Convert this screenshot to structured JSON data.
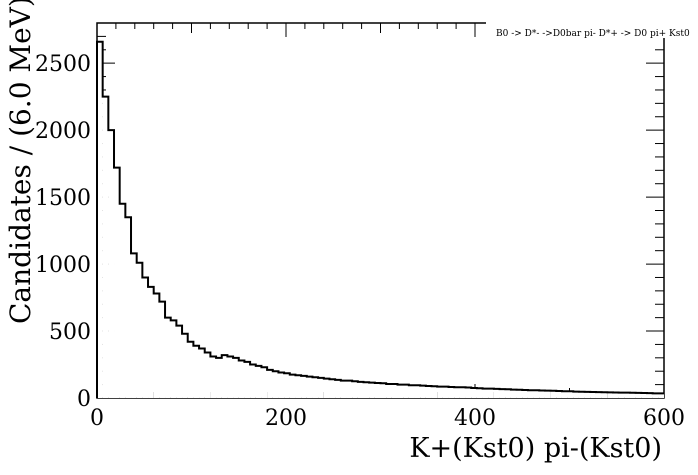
{
  "chart_data": {
    "type": "bar",
    "title": "B0 -> D*- ->D0bar pi- D*+ -> D0 pi+ Kst0",
    "xlabel": "K+(Kst0)  pi-(Kst0)",
    "ylabel": "Candidates / (6.0 MeV)",
    "xlim": [
      0,
      600
    ],
    "ylim": [
      0,
      2800
    ],
    "x_ticks": [
      "0",
      "200",
      "400",
      "600"
    ],
    "y_ticks": [
      "0",
      "500",
      "1000",
      "1500",
      "2000",
      "2500"
    ],
    "bin_width": 6,
    "grid": false,
    "values": [
      2660,
      2250,
      2000,
      1720,
      1450,
      1350,
      1080,
      1010,
      900,
      830,
      780,
      720,
      600,
      580,
      540,
      480,
      420,
      390,
      370,
      340,
      310,
      300,
      320,
      310,
      300,
      280,
      270,
      250,
      240,
      230,
      210,
      200,
      190,
      185,
      175,
      170,
      165,
      160,
      155,
      150,
      145,
      140,
      135,
      130,
      130,
      125,
      120,
      118,
      115,
      112,
      110,
      105,
      105,
      100,
      100,
      95,
      95,
      92,
      90,
      88,
      85,
      85,
      82,
      80,
      80,
      78,
      75,
      73,
      70,
      70,
      68,
      66,
      65,
      63,
      62,
      60,
      58,
      58,
      56,
      55,
      54,
      52,
      50,
      50,
      48,
      47,
      46,
      45,
      44,
      43,
      42,
      41,
      40,
      40,
      39,
      38,
      37,
      36,
      35,
      35
    ]
  }
}
